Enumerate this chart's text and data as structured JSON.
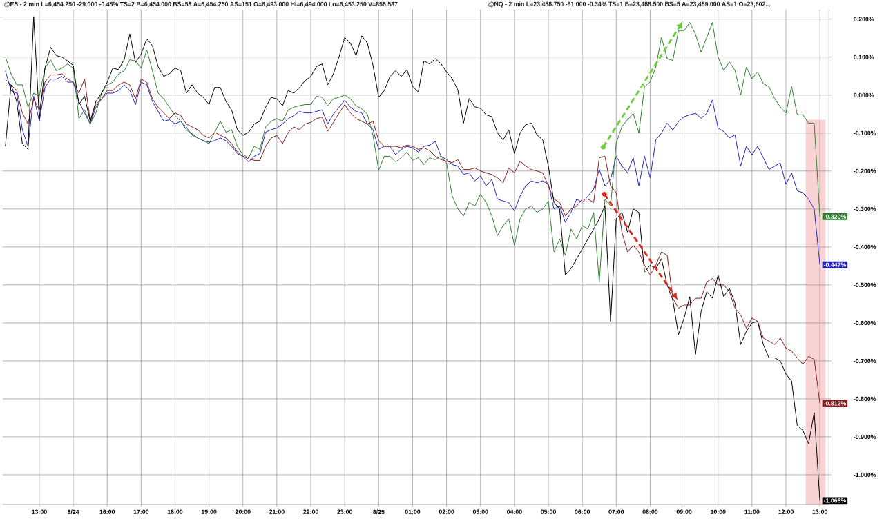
{
  "chart_data": {
    "type": "line",
    "annotations": [
      "@ES - 2 min L=6,454.250 -29.000 -0.45% TS=2 B=6,454.000 BS=58 A=6,454.250 AS=151 O=6,493.000 Hi=6,494.000 Lo=6,453.250 V=856,587",
      "@NQ - 2 min L=23,488.750 -81.000 -0.34% TS=1 B=23,488.500 BS=5 A=23,489.000 AS=1 O=23,602..."
    ],
    "categories": [
      null,
      null,
      null,
      null,
      null,
      null,
      "13:00",
      null,
      null,
      null,
      null,
      null,
      "8/24",
      null,
      null,
      null,
      null,
      null,
      "16:00",
      null,
      null,
      null,
      null,
      null,
      "17:00",
      null,
      null,
      null,
      null,
      null,
      "18:00",
      null,
      null,
      null,
      null,
      null,
      "19:00",
      null,
      null,
      null,
      null,
      null,
      "20:00",
      null,
      null,
      null,
      null,
      null,
      "21:00",
      null,
      null,
      null,
      null,
      null,
      "22:00",
      null,
      null,
      null,
      null,
      null,
      "23:00",
      null,
      null,
      null,
      null,
      null,
      "8/25",
      null,
      null,
      null,
      null,
      null,
      "01:00",
      null,
      null,
      null,
      null,
      null,
      "02:00",
      null,
      null,
      null,
      null,
      null,
      "03:00",
      null,
      null,
      null,
      null,
      null,
      "04:00",
      null,
      null,
      null,
      null,
      null,
      "05:00",
      null,
      null,
      null,
      null,
      null,
      "06:00",
      null,
      null,
      null,
      null,
      null,
      "07:00",
      null,
      null,
      null,
      null,
      null,
      "08:00",
      null,
      null,
      null,
      null,
      null,
      "09:00",
      null,
      null,
      null,
      null,
      null,
      "10:00",
      null,
      null,
      null,
      null,
      null,
      "11:00",
      null,
      null,
      null,
      null,
      null,
      "12:00",
      null,
      null,
      null,
      null,
      null,
      "13:00"
    ],
    "ylim": [
      -1.078,
      0.225
    ],
    "yticks": [
      {
        "value": 0.2,
        "label": "0.200%"
      },
      {
        "value": 0.1,
        "label": "0.100%"
      },
      {
        "value": 0,
        "label": "0.000%"
      },
      {
        "value": -0.1,
        "label": "-0.100%"
      },
      {
        "value": -0.2,
        "label": "-0.200%"
      },
      {
        "value": -0.3,
        "label": "-0.300%"
      },
      {
        "value": -0.4,
        "label": "-0.400%"
      },
      {
        "value": -0.5,
        "label": "-0.500%"
      },
      {
        "value": -0.6,
        "label": "-0.600%"
      },
      {
        "value": -0.7,
        "label": "-0.700%"
      },
      {
        "value": -0.8,
        "label": "-0.800%"
      },
      {
        "value": -0.9,
        "label": "-0.900%"
      },
      {
        "value": -1.0,
        "label": "-1.000%"
      }
    ],
    "grid": true,
    "series": [
      {
        "color": "#2323b8",
        "values": [
          0.064,
          0.012,
          0.005,
          -0.091,
          -0.135,
          -0.003,
          -0.069,
          0.02,
          0.042,
          0.042,
          0.049,
          0.034,
          0.034,
          -0.017,
          -0.047,
          -0.076,
          -0.032,
          -0.01,
          0.005,
          0.005,
          0.012,
          0.027,
          0.012,
          -0.025,
          0.034,
          0.027,
          -0.017,
          -0.043,
          -0.069,
          -0.065,
          -0.076,
          -0.069,
          -0.091,
          -0.102,
          -0.113,
          -0.12,
          -0.124,
          -0.12,
          -0.113,
          -0.12,
          -0.135,
          -0.154,
          -0.161,
          -0.176,
          -0.161,
          -0.154,
          -0.098,
          -0.091,
          -0.087,
          -0.076,
          -0.062,
          -0.054,
          -0.043,
          -0.047,
          -0.047,
          -0.043,
          -0.039,
          -0.076,
          -0.05,
          -0.032,
          -0.014,
          -0.032,
          -0.043,
          -0.047,
          -0.076,
          -0.091,
          -0.143,
          -0.135,
          -0.135,
          -0.157,
          -0.143,
          -0.135,
          -0.139,
          -0.15,
          -0.135,
          -0.132,
          -0.122,
          -0.161,
          -0.17,
          -0.183,
          -0.187,
          -0.209,
          -0.205,
          -0.226,
          -0.213,
          -0.239,
          -0.222,
          -0.274,
          -0.279,
          -0.283,
          -0.305,
          -0.266,
          -0.239,
          -0.226,
          -0.231,
          -0.226,
          -0.235,
          -0.3,
          -0.292,
          -0.335,
          -0.309,
          -0.274,
          -0.283,
          -0.266,
          -0.248,
          -0.196,
          -0.239,
          -0.222,
          -0.161,
          -0.187,
          -0.205,
          -0.165,
          -0.239,
          -0.161,
          -0.218,
          -0.118,
          -0.1,
          -0.074,
          -0.092,
          -0.07,
          -0.057,
          -0.052,
          -0.048,
          -0.061,
          -0.048,
          -0.013,
          -0.087,
          -0.096,
          -0.113,
          -0.105,
          -0.187,
          -0.135,
          -0.157,
          -0.135,
          -0.165,
          -0.196,
          -0.187,
          -0.179,
          -0.235,
          -0.205,
          -0.252,
          -0.257,
          -0.274,
          -0.3,
          -0.447
        ],
        "value_labels": [
          null,
          null,
          null,
          null,
          null,
          null,
          null,
          null,
          null,
          null,
          null,
          null,
          null,
          null,
          null,
          null,
          null,
          null,
          null,
          null,
          null,
          null,
          null,
          null,
          null,
          null,
          null,
          null,
          null,
          null,
          null,
          null,
          null,
          null,
          null,
          null,
          null,
          null,
          null,
          null,
          null,
          null,
          null,
          null,
          null,
          null,
          null,
          null,
          null,
          null,
          null,
          null,
          null,
          null,
          null,
          null,
          null,
          null,
          null,
          null,
          null,
          null,
          null,
          null,
          null,
          null,
          null,
          null,
          null,
          null,
          null,
          null,
          null,
          null,
          null,
          null,
          null,
          null,
          null,
          null,
          null,
          null,
          null,
          null,
          null,
          null,
          null,
          null,
          null,
          null,
          null,
          null,
          null,
          null,
          null,
          null,
          null,
          null,
          null,
          null,
          null,
          null,
          null,
          null,
          null,
          null,
          null,
          null,
          null,
          null,
          null,
          null,
          null,
          null,
          null,
          null,
          null,
          null,
          null,
          null,
          null,
          null,
          null,
          null,
          null,
          null,
          null,
          null,
          null,
          null,
          null,
          null,
          null,
          null,
          null,
          null,
          null,
          null,
          null,
          null,
          null,
          null,
          null,
          null,
          "-0.447%"
        ]
      },
      {
        "color": "#2f7f2f",
        "values": [
          0.101,
          0.056,
          0.027,
          0.027,
          -0.032,
          0.005,
          -0.003,
          0.071,
          0.093,
          0.064,
          0.071,
          0.082,
          0.071,
          -0.062,
          -0.039,
          -0.076,
          -0.047,
          0.005,
          0.027,
          0.034,
          0.056,
          0.064,
          0.093,
          0.09,
          0.071,
          0.119,
          0.064,
          0.005,
          -0.01,
          -0.032,
          -0.054,
          -0.069,
          -0.084,
          -0.106,
          -0.113,
          -0.12,
          -0.128,
          -0.098,
          -0.069,
          -0.098,
          -0.091,
          -0.135,
          -0.157,
          -0.165,
          -0.135,
          -0.143,
          -0.084,
          -0.069,
          -0.062,
          -0.069,
          -0.039,
          -0.032,
          -0.028,
          -0.025,
          -0.025,
          -0.003,
          -0.006,
          -0.028,
          -0.01,
          -0.006,
          0.0,
          -0.01,
          -0.028,
          -0.036,
          -0.05,
          -0.106,
          -0.198,
          -0.161,
          -0.161,
          -0.176,
          -0.165,
          -0.15,
          -0.172,
          -0.165,
          -0.183,
          -0.165,
          -0.17,
          -0.161,
          -0.179,
          -0.266,
          -0.3,
          -0.318,
          -0.283,
          -0.292,
          -0.261,
          -0.283,
          -0.318,
          -0.37,
          -0.344,
          -0.326,
          -0.396,
          -0.326,
          -0.3,
          -0.292,
          -0.309,
          -0.3,
          -0.279,
          -0.413,
          -0.379,
          -0.422,
          -0.353,
          -0.379,
          -0.344,
          -0.353,
          -0.309,
          -0.492,
          -0.274,
          -0.292,
          -0.126,
          -0.083,
          -0.065,
          -0.048,
          -0.1,
          0.022,
          0.035,
          0.074,
          0.152,
          0.096,
          0.091,
          0.17,
          0.17,
          0.191,
          0.161,
          0.113,
          0.152,
          0.191,
          0.1,
          0.065,
          0.087,
          0.065,
          0.0,
          0.074,
          0.043,
          0.061,
          0.03,
          0.022,
          -0.009,
          -0.031,
          -0.048,
          0.023,
          -0.052,
          -0.052,
          -0.074,
          -0.074,
          -0.32
        ],
        "value_labels": [
          null,
          null,
          null,
          null,
          null,
          null,
          null,
          null,
          null,
          null,
          null,
          null,
          null,
          null,
          null,
          null,
          null,
          null,
          null,
          null,
          null,
          null,
          null,
          null,
          null,
          null,
          null,
          null,
          null,
          null,
          null,
          null,
          null,
          null,
          null,
          null,
          null,
          null,
          null,
          null,
          null,
          null,
          null,
          null,
          null,
          null,
          null,
          null,
          null,
          null,
          null,
          null,
          null,
          null,
          null,
          null,
          null,
          null,
          null,
          null,
          null,
          null,
          null,
          null,
          null,
          null,
          null,
          null,
          null,
          null,
          null,
          null,
          null,
          null,
          null,
          null,
          null,
          null,
          null,
          null,
          null,
          null,
          null,
          null,
          null,
          null,
          null,
          null,
          null,
          null,
          null,
          null,
          null,
          null,
          null,
          null,
          null,
          null,
          null,
          null,
          null,
          null,
          null,
          null,
          null,
          null,
          null,
          null,
          null,
          null,
          null,
          null,
          null,
          null,
          null,
          null,
          null,
          null,
          null,
          null,
          null,
          null,
          null,
          null,
          null,
          null,
          null,
          null,
          null,
          null,
          null,
          null,
          null,
          null,
          null,
          null,
          null,
          null,
          null,
          null,
          null,
          null,
          null,
          null,
          "-0.320%"
        ]
      },
      {
        "color": "#8b1c1c",
        "values": [
          0.042,
          0.027,
          0.012,
          -0.047,
          -0.076,
          -0.01,
          -0.039,
          0.034,
          0.053,
          0.053,
          0.056,
          0.042,
          0.034,
          0.005,
          0.042,
          -0.069,
          -0.025,
          -0.01,
          0.012,
          0.012,
          0.027,
          0.034,
          0.027,
          -0.01,
          0.042,
          0.034,
          -0.01,
          -0.032,
          -0.047,
          -0.062,
          -0.047,
          -0.054,
          -0.076,
          -0.084,
          -0.091,
          -0.106,
          -0.113,
          -0.098,
          -0.106,
          -0.113,
          -0.128,
          -0.15,
          -0.161,
          -0.168,
          -0.172,
          -0.172,
          -0.135,
          -0.113,
          -0.106,
          -0.128,
          -0.098,
          -0.084,
          -0.091,
          -0.076,
          -0.072,
          -0.062,
          -0.058,
          -0.095,
          -0.072,
          -0.047,
          -0.025,
          -0.047,
          -0.062,
          -0.069,
          -0.076,
          -0.069,
          -0.12,
          -0.135,
          -0.135,
          -0.135,
          -0.139,
          -0.132,
          -0.135,
          -0.143,
          -0.139,
          -0.146,
          -0.161,
          -0.17,
          -0.174,
          -0.178,
          -0.17,
          -0.196,
          -0.196,
          -0.192,
          -0.2,
          -0.205,
          -0.209,
          -0.218,
          -0.231,
          -0.192,
          -0.205,
          -0.174,
          -0.187,
          -0.196,
          -0.2,
          -0.205,
          -0.239,
          -0.274,
          -0.283,
          -0.318,
          -0.3,
          -0.292,
          -0.274,
          -0.274,
          -0.283,
          -0.165,
          -0.161,
          -0.239,
          -0.257,
          -0.361,
          -0.413,
          -0.396,
          -0.413,
          -0.448,
          -0.474,
          -0.448,
          -0.413,
          -0.422,
          -0.535,
          -0.561,
          -0.553,
          -0.553,
          -0.535,
          -0.535,
          -0.492,
          -0.483,
          -0.5,
          -0.5,
          -0.518,
          -0.561,
          -0.579,
          -0.614,
          -0.587,
          -0.596,
          -0.64,
          -0.648,
          -0.657,
          -0.64,
          -0.666,
          -0.674,
          -0.692,
          -0.709,
          -0.688,
          -0.696,
          -0.812
        ],
        "value_labels": [
          null,
          null,
          null,
          null,
          null,
          null,
          null,
          null,
          null,
          null,
          null,
          null,
          null,
          null,
          null,
          null,
          null,
          null,
          null,
          null,
          null,
          null,
          null,
          null,
          null,
          null,
          null,
          null,
          null,
          null,
          null,
          null,
          null,
          null,
          null,
          null,
          null,
          null,
          null,
          null,
          null,
          null,
          null,
          null,
          null,
          null,
          null,
          null,
          null,
          null,
          null,
          null,
          null,
          null,
          null,
          null,
          null,
          null,
          null,
          null,
          null,
          null,
          null,
          null,
          null,
          null,
          null,
          null,
          null,
          null,
          null,
          null,
          null,
          null,
          null,
          null,
          null,
          null,
          null,
          null,
          null,
          null,
          null,
          null,
          null,
          null,
          null,
          null,
          null,
          null,
          null,
          null,
          null,
          null,
          null,
          null,
          null,
          null,
          null,
          null,
          null,
          null,
          null,
          null,
          null,
          null,
          null,
          null,
          null,
          null,
          null,
          null,
          null,
          null,
          null,
          null,
          null,
          null,
          null,
          null,
          null,
          null,
          null,
          null,
          null,
          null,
          null,
          null,
          null,
          null,
          null,
          null,
          null,
          null,
          null,
          null,
          null,
          null,
          null,
          null,
          null,
          null,
          null,
          null,
          "-0.812%"
        ]
      },
      {
        "color": "#000000",
        "values": [
          -0.135,
          0.027,
          -0.017,
          -0.128,
          -0.143,
          0.207,
          -0.062,
          0.071,
          0.126,
          0.104,
          0.1,
          0.09,
          0.078,
          -0.025,
          -0.003,
          -0.069,
          -0.017,
          0.005,
          0.034,
          0.071,
          0.067,
          0.093,
          0.161,
          0.086,
          0.108,
          0.148,
          0.13,
          0.075,
          0.049,
          0.056,
          0.071,
          0.064,
          0.005,
          0.027,
          0.005,
          -0.006,
          -0.025,
          0.02,
          0.02,
          -0.017,
          -0.039,
          -0.091,
          -0.106,
          -0.098,
          -0.076,
          -0.069,
          -0.032,
          -0.006,
          -0.01,
          -0.028,
          0.012,
          0.005,
          0.02,
          0.038,
          0.049,
          0.075,
          0.082,
          0.027,
          0.056,
          0.101,
          0.152,
          0.137,
          0.104,
          0.156,
          0.137,
          0.078,
          -0.006,
          0.012,
          0.049,
          0.064,
          0.049,
          0.067,
          0.023,
          0.008,
          0.09,
          0.082,
          0.096,
          0.083,
          0.061,
          0.043,
          0.013,
          -0.074,
          -0.009,
          -0.031,
          -0.035,
          -0.052,
          -0.057,
          -0.1,
          -0.118,
          -0.092,
          -0.154,
          -0.1,
          -0.078,
          -0.074,
          -0.105,
          -0.118,
          -0.187,
          -0.283,
          -0.3,
          -0.474,
          -0.457,
          -0.431,
          -0.405,
          -0.379,
          -0.353,
          -0.326,
          -0.292,
          -0.596,
          -0.326,
          -0.309,
          -0.361,
          -0.3,
          -0.309,
          -0.466,
          -0.448,
          -0.457,
          -0.431,
          -0.5,
          -0.54,
          -0.631,
          -0.587,
          -0.531,
          -0.683,
          -0.57,
          -0.518,
          -0.535,
          -0.474,
          -0.531,
          -0.509,
          -0.548,
          -0.657,
          -0.622,
          -0.6,
          -0.596,
          -0.657,
          -0.692,
          -0.692,
          -0.7,
          -0.735,
          -0.753,
          -0.87,
          -0.883,
          -0.918,
          -0.836,
          -1.068
        ],
        "value_labels": [
          null,
          null,
          null,
          null,
          null,
          null,
          null,
          null,
          null,
          null,
          null,
          null,
          null,
          null,
          null,
          null,
          null,
          null,
          null,
          null,
          null,
          null,
          null,
          null,
          null,
          null,
          null,
          null,
          null,
          null,
          null,
          null,
          null,
          null,
          null,
          null,
          null,
          null,
          null,
          null,
          null,
          null,
          null,
          null,
          null,
          null,
          null,
          null,
          null,
          null,
          null,
          null,
          null,
          null,
          null,
          null,
          null,
          null,
          null,
          null,
          null,
          null,
          null,
          null,
          null,
          null,
          null,
          null,
          null,
          null,
          null,
          null,
          null,
          null,
          null,
          null,
          null,
          null,
          null,
          null,
          null,
          null,
          null,
          null,
          null,
          null,
          null,
          null,
          null,
          null,
          null,
          null,
          null,
          null,
          null,
          null,
          null,
          null,
          null,
          null,
          null,
          null,
          null,
          null,
          null,
          null,
          null,
          null,
          null,
          null,
          null,
          null,
          null,
          null,
          null,
          null,
          null,
          null,
          null,
          null,
          null,
          null,
          null,
          null,
          null,
          null,
          null,
          null,
          null,
          null,
          null,
          null,
          null,
          null,
          null,
          null,
          null,
          null,
          null,
          null,
          null,
          null,
          null,
          null,
          "-1.068%"
        ]
      }
    ]
  }
}
